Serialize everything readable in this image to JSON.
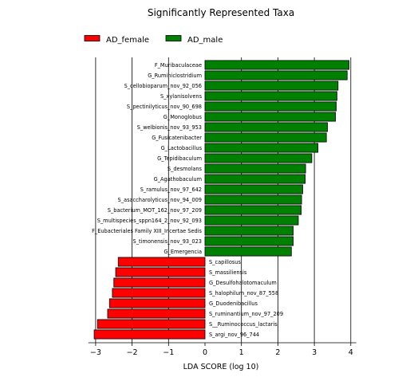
{
  "chart_data": {
    "type": "bar",
    "orientation": "horizontal",
    "title": "Significantly Represented Taxa",
    "xlabel": "LDA SCORE (log 10)",
    "ylabel": "",
    "xlim": [
      -3.2,
      4.15
    ],
    "xticks": [
      -3,
      -2,
      -1,
      0,
      1,
      2,
      3,
      4
    ],
    "xtick_labels": [
      "−3",
      "−2",
      "−1",
      "0",
      "1",
      "2",
      "3",
      "4"
    ],
    "grid": "vertical",
    "legend_placement": "top-left",
    "series": [
      {
        "name": "AD_female",
        "color": "#ff0000"
      },
      {
        "name": "AD_male",
        "color": "#008000"
      }
    ],
    "bars": [
      {
        "label": "F_Muribaculaceae",
        "value": 3.95,
        "group": 1
      },
      {
        "label": "G_Ruminiclostridium",
        "value": 3.9,
        "group": 1
      },
      {
        "label": "S_cellobioparum_nov_92_056",
        "value": 3.65,
        "group": 1
      },
      {
        "label": "S_xylanisolvens",
        "value": 3.62,
        "group": 1
      },
      {
        "label": "S_pectinilyticus_nov_90_698",
        "value": 3.6,
        "group": 1
      },
      {
        "label": "G_Monoglobus",
        "value": 3.58,
        "group": 1
      },
      {
        "label": "S_welbionis_nov_93_953",
        "value": 3.36,
        "group": 1
      },
      {
        "label": "G_Fusicatenibacter",
        "value": 3.33,
        "group": 1
      },
      {
        "label": "G_Lactobacillus",
        "value": 3.1,
        "group": 1
      },
      {
        "label": "G_Tepidibaculum",
        "value": 2.93,
        "group": 1
      },
      {
        "label": "S_desmolans",
        "value": 2.76,
        "group": 1
      },
      {
        "label": "G_Agathobaculum",
        "value": 2.75,
        "group": 1
      },
      {
        "label": "S_ramulus_nov_97_642",
        "value": 2.68,
        "group": 1
      },
      {
        "label": "S_asaccharolyticus_nov_94_009",
        "value": 2.65,
        "group": 1
      },
      {
        "label": "S_bacterium_MOT_162_nov_97_209",
        "value": 2.64,
        "group": 1
      },
      {
        "label": "S_multispecies_sppn164_2_nov_92_093",
        "value": 2.56,
        "group": 1
      },
      {
        "label": "F_Eubacteriales Family XIII_Incertae Sedis",
        "value": 2.42,
        "group": 1
      },
      {
        "label": "S_timonensis_nov_93_023",
        "value": 2.42,
        "group": 1
      },
      {
        "label": "G_Emergencia",
        "value": 2.37,
        "group": 1
      },
      {
        "label": "S_capillosus",
        "value": -2.38,
        "group": 0
      },
      {
        "label": "S_massiliensis",
        "value": -2.45,
        "group": 0
      },
      {
        "label": "G_Desulfohalotomaculum",
        "value": -2.5,
        "group": 0
      },
      {
        "label": "S_halophilum_nov_87_558",
        "value": -2.54,
        "group": 0
      },
      {
        "label": "G_Duodenibacillus",
        "value": -2.62,
        "group": 0
      },
      {
        "label": "S_ruminantium_nov_97_209",
        "value": -2.67,
        "group": 0
      },
      {
        "label": "S__Ruminococcus_lactaris",
        "value": -2.95,
        "group": 0
      },
      {
        "label": "S_argi_nov_96_744",
        "value": -3.04,
        "group": 0
      }
    ]
  }
}
